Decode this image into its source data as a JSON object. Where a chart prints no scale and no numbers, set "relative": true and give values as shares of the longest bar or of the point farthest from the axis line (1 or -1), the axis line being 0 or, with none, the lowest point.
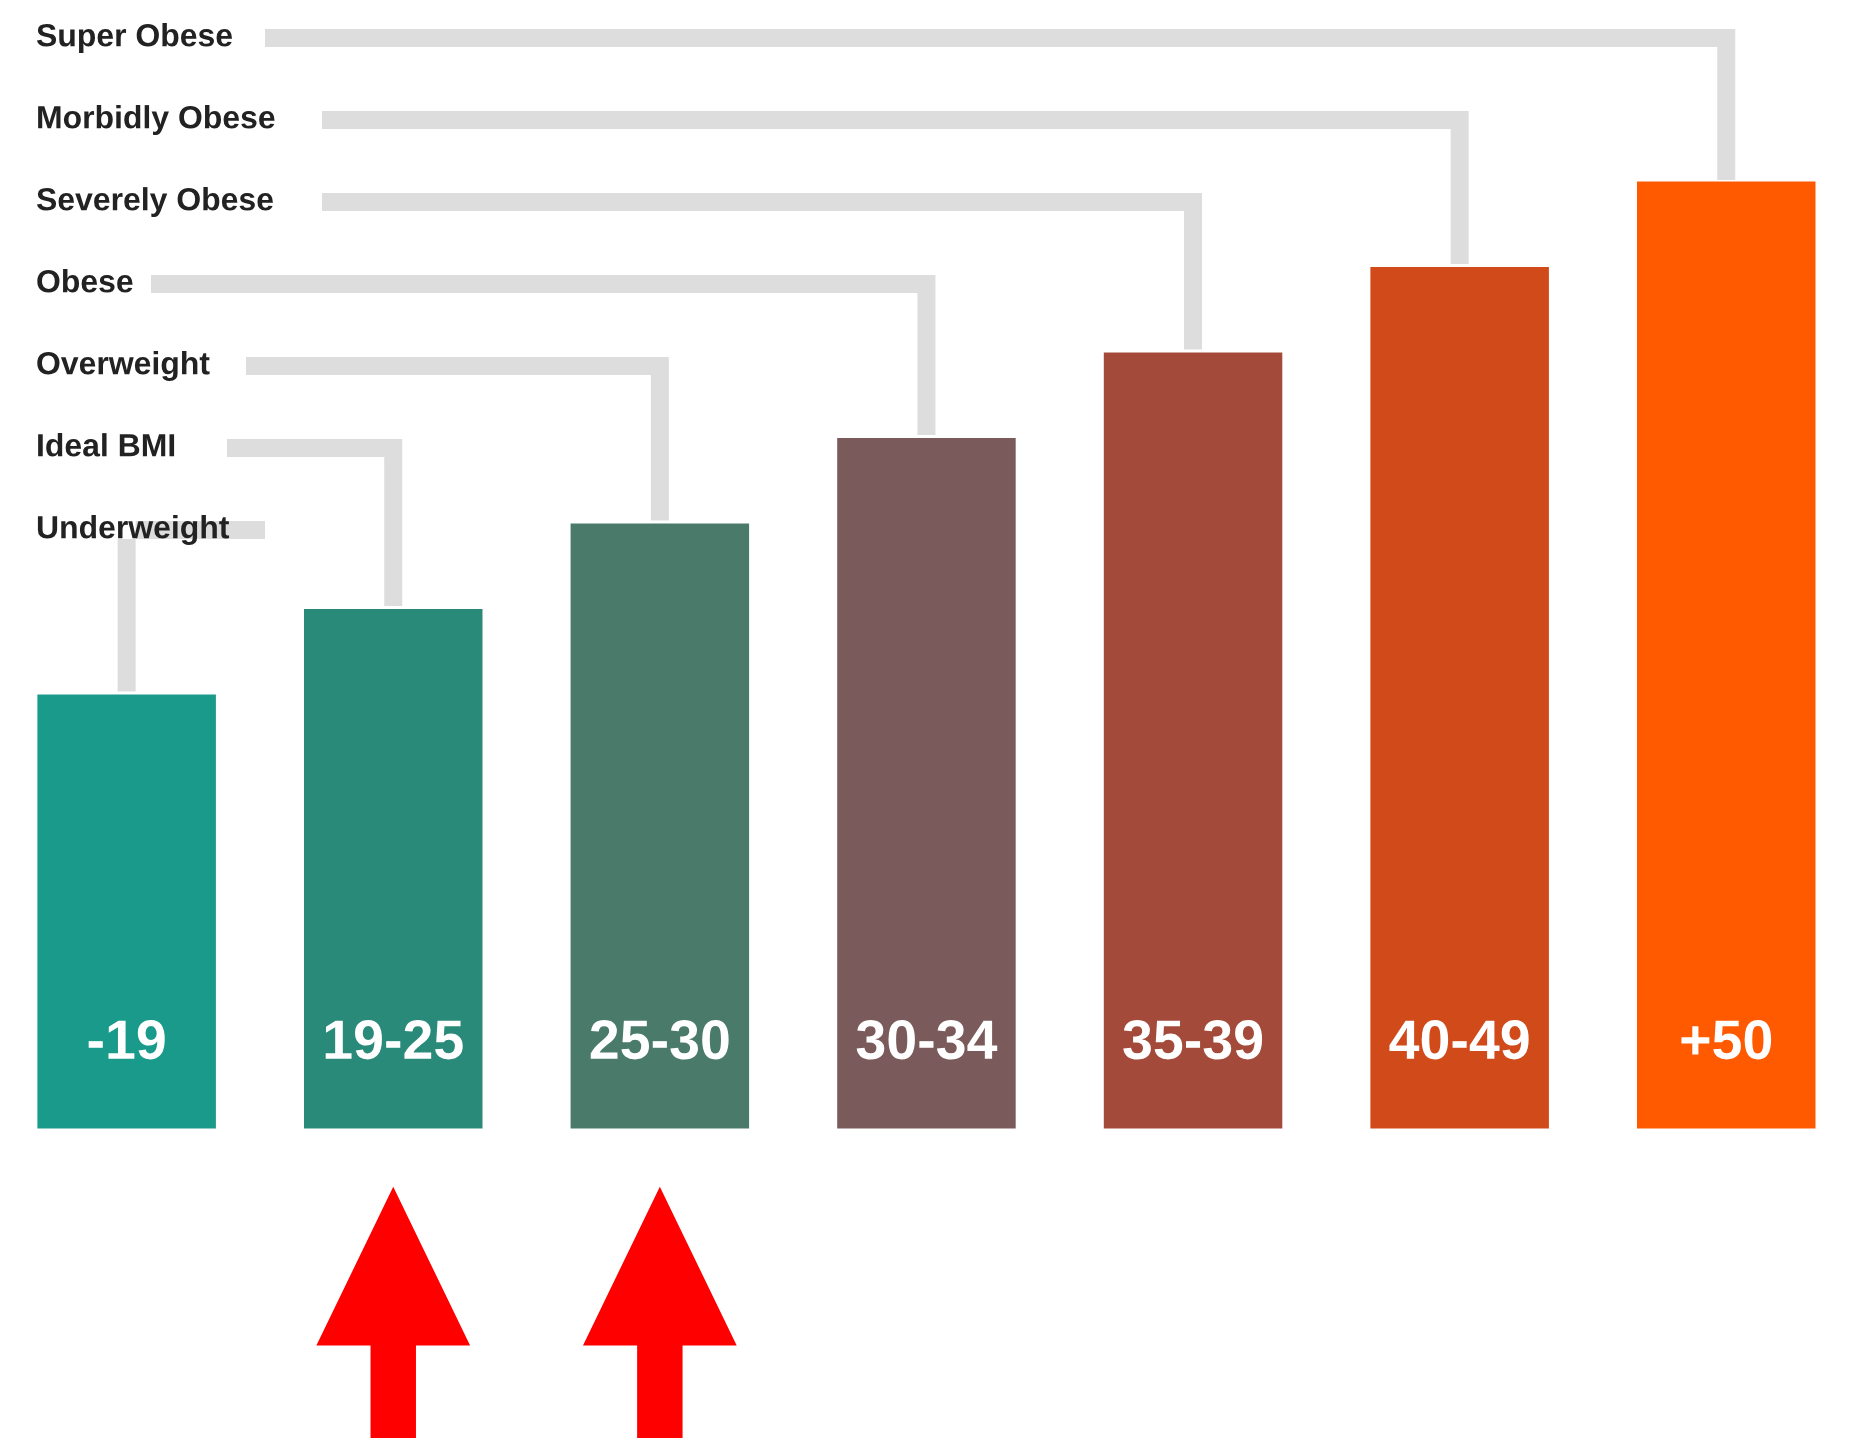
{
  "chart_data": {
    "type": "bar",
    "relative": true,
    "categories": [
      "-19",
      "19-25",
      "25-30",
      "30-34",
      "35-39",
      "40-49",
      "+50"
    ],
    "values": [
      0.46,
      0.55,
      0.64,
      0.73,
      0.82,
      0.91,
      1
    ],
    "colors": [
      "#1a9a8a",
      "#2a8a7a",
      "#4a7a6a",
      "#7a5a5a",
      "#a44a3a",
      "#d04a1a",
      "#ff5a00"
    ],
    "annotations": [
      "Underweight",
      "Ideal BMI",
      "Overweight",
      "Obese",
      "Severely Obese",
      "Morbidly Obese",
      "Super Obese"
    ],
    "legend": false
  }
}
